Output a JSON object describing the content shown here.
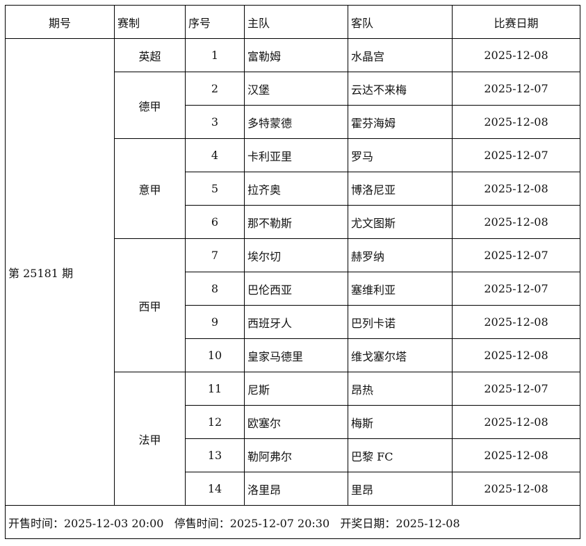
{
  "headers": [
    "期号",
    "赛制",
    "序号",
    "主队",
    "客队",
    "比赛日期"
  ],
  "issue": "第 25181 期",
  "leagues": [
    {
      "name": "英超",
      "matches": [
        {
          "no": "1",
          "home": "富勒姆",
          "away": "水晶宫",
          "date": "2025-12-08"
        }
      ]
    },
    {
      "name": "德甲",
      "matches": [
        {
          "no": "2",
          "home": "汉堡",
          "away": "云达不来梅",
          "date": "2025-12-07"
        },
        {
          "no": "3",
          "home": "多特蒙德",
          "away": "霍芬海姆",
          "date": "2025-12-08"
        }
      ]
    },
    {
      "name": "意甲",
      "matches": [
        {
          "no": "4",
          "home": "卡利亚里",
          "away": "罗马",
          "date": "2025-12-07"
        },
        {
          "no": "5",
          "home": "拉齐奥",
          "away": "博洛尼亚",
          "date": "2025-12-08"
        },
        {
          "no": "6",
          "home": "那不勒斯",
          "away": "尤文图斯",
          "date": "2025-12-08"
        }
      ]
    },
    {
      "name": "西甲",
      "matches": [
        {
          "no": "7",
          "home": "埃尔切",
          "away": "赫罗纳",
          "date": "2025-12-07"
        },
        {
          "no": "8",
          "home": "巴伦西亚",
          "away": "塞维利亚",
          "date": "2025-12-07"
        },
        {
          "no": "9",
          "home": "西班牙人",
          "away": "巴列卡诺",
          "date": "2025-12-08"
        },
        {
          "no": "10",
          "home": "皇家马德里",
          "away": "维戈塞尔塔",
          "date": "2025-12-08"
        }
      ]
    },
    {
      "name": "法甲",
      "matches": [
        {
          "no": "11",
          "home": "尼斯",
          "away": "昂热",
          "date": "2025-12-07"
        },
        {
          "no": "12",
          "home": "欧塞尔",
          "away": "梅斯",
          "date": "2025-12-08"
        },
        {
          "no": "13",
          "home": "勒阿弗尔",
          "away": "巴黎 FC",
          "date": "2025-12-08"
        },
        {
          "no": "14",
          "home": "洛里昂",
          "away": "里昂",
          "date": "2025-12-08"
        }
      ]
    }
  ],
  "footer": "开售时间：2025-12-03 20:00   停售时间：2025-12-07 20:30   开奖日期：2025-12-08"
}
